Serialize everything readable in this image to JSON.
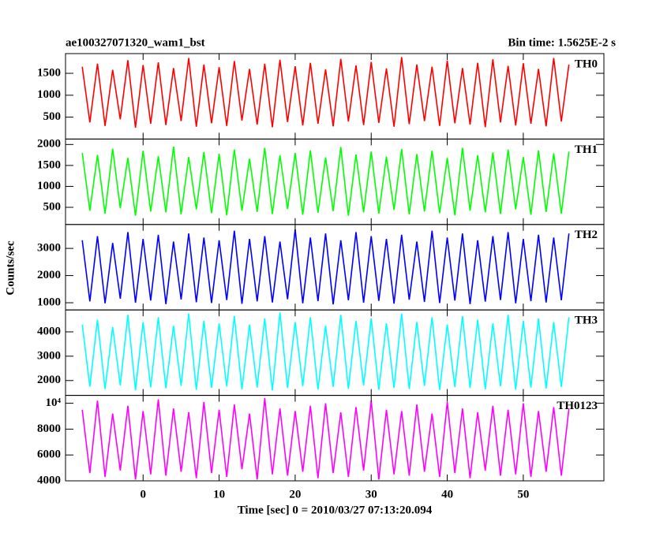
{
  "title": "ae100327071320_wam1_bst",
  "subtitle": "Bin time: 1.5625E-2 s",
  "ylabel": "Counts/sec",
  "xlabel": "Time [sec] 0 = 2010/03/27 07:13:20.094",
  "chart_data": [
    {
      "type": "line",
      "label": "TH0",
      "color": "#ff0000",
      "xlim": [
        -10.2,
        60.6
      ],
      "xticks": [
        0,
        10,
        20,
        30,
        40,
        50
      ],
      "ylim": [
        0,
        1950
      ],
      "yticks": [
        500,
        1000,
        1500
      ],
      "x": [
        -8,
        -7,
        -6,
        -5,
        -4,
        -3,
        -2,
        -1,
        0,
        1,
        2,
        3,
        4,
        5,
        6,
        7,
        8,
        9,
        10,
        11,
        12,
        13,
        14,
        15,
        16,
        17,
        18,
        19,
        20,
        21,
        22,
        23,
        24,
        25,
        26,
        27,
        28,
        29,
        30,
        31,
        32,
        33,
        34,
        35,
        36,
        37,
        38,
        39,
        40,
        41,
        42,
        43,
        44,
        45,
        46,
        47,
        48,
        49,
        50,
        51,
        52,
        53,
        54,
        55,
        56
      ],
      "values": [
        1650,
        380,
        1720,
        300,
        1580,
        450,
        1800,
        260,
        1690,
        350,
        1750,
        320,
        1620,
        410,
        1850,
        280,
        1700,
        360,
        1640,
        300,
        1780,
        420,
        1600,
        330,
        1720,
        270,
        1810,
        390,
        1660,
        310,
        1740,
        350,
        1590,
        290,
        1830,
        400,
        1680,
        320,
        1760,
        370,
        1610,
        280,
        1870,
        340,
        1700,
        410,
        1650,
        300,
        1790,
        360,
        1620,
        330,
        1740,
        270,
        1820,
        380,
        1670,
        310,
        1730,
        350,
        1600,
        290,
        1850,
        400,
        1700
      ]
    },
    {
      "type": "line",
      "label": "TH1",
      "color": "#00ff00",
      "xlim": [
        -10.2,
        60.6
      ],
      "xticks": [
        0,
        10,
        20,
        30,
        40,
        50
      ],
      "ylim": [
        90,
        2130
      ],
      "yticks": [
        500,
        1000,
        1500,
        2000
      ],
      "x": [
        -8,
        -7,
        -6,
        -5,
        -4,
        -3,
        -2,
        -1,
        0,
        1,
        2,
        3,
        4,
        5,
        6,
        7,
        8,
        9,
        10,
        11,
        12,
        13,
        14,
        15,
        16,
        17,
        18,
        19,
        20,
        21,
        22,
        23,
        24,
        25,
        26,
        27,
        28,
        29,
        30,
        31,
        32,
        33,
        34,
        35,
        36,
        37,
        38,
        39,
        40,
        41,
        42,
        43,
        44,
        45,
        46,
        47,
        48,
        49,
        50,
        51,
        52,
        53,
        54,
        55,
        56
      ],
      "values": [
        1800,
        420,
        1750,
        350,
        1900,
        480,
        1680,
        300,
        1850,
        400,
        1720,
        380,
        1950,
        330,
        1700,
        450,
        1820,
        360,
        1780,
        310,
        1880,
        420,
        1660,
        390,
        1920,
        340,
        1740,
        460,
        1800,
        320,
        1860,
        370,
        1690,
        410,
        1940,
        300,
        1760,
        380,
        1830,
        350,
        1710,
        440,
        1890,
        330,
        1770,
        400,
        1850,
        360,
        1680,
        310,
        1920,
        420,
        1740,
        380,
        1810,
        340,
        1880,
        450,
        1700,
        320,
        1860,
        390,
        1790,
        350,
        1830
      ]
    },
    {
      "type": "line",
      "label": "TH2",
      "color": "#0000ff",
      "xlim": [
        -10.2,
        60.6
      ],
      "xticks": [
        0,
        10,
        20,
        30,
        40,
        50
      ],
      "ylim": [
        735,
        3880
      ],
      "yticks": [
        1000,
        2000,
        3000
      ],
      "x": [
        -8,
        -7,
        -6,
        -5,
        -4,
        -3,
        -2,
        -1,
        0,
        1,
        2,
        3,
        4,
        5,
        6,
        7,
        8,
        9,
        10,
        11,
        12,
        13,
        14,
        15,
        16,
        17,
        18,
        19,
        20,
        21,
        22,
        23,
        24,
        25,
        26,
        27,
        28,
        29,
        30,
        31,
        32,
        33,
        34,
        35,
        36,
        37,
        38,
        39,
        40,
        41,
        42,
        43,
        44,
        45,
        46,
        47,
        48,
        49,
        50,
        51,
        52,
        53,
        54,
        55,
        56
      ],
      "values": [
        3300,
        1050,
        3450,
        980,
        3200,
        1150,
        3600,
        1000,
        3350,
        1080,
        3500,
        950,
        3250,
        1120,
        3550,
        1020,
        3400,
        990,
        3300,
        1100,
        3650,
        960,
        3350,
        1050,
        3450,
        1010,
        3250,
        1130,
        3700,
        980,
        3400,
        1060,
        3550,
        940,
        3300,
        1090,
        3600,
        1000,
        3450,
        1070,
        3350,
        970,
        3500,
        1110,
        3250,
        1030,
        3650,
        990,
        3400,
        1080,
        3550,
        950,
        3300,
        1040,
        3450,
        1100,
        3600,
        980,
        3350,
        1060,
        3500,
        1010,
        3400,
        1090,
        3550
      ]
    },
    {
      "type": "line",
      "label": "TH3",
      "color": "#00ffff",
      "xlim": [
        -10.2,
        60.6
      ],
      "xticks": [
        0,
        10,
        20,
        30,
        40,
        50
      ],
      "ylim": [
        1390,
        4900
      ],
      "yticks": [
        2000,
        3000,
        4000
      ],
      "x": [
        -8,
        -7,
        -6,
        -5,
        -4,
        -3,
        -2,
        -1,
        0,
        1,
        2,
        3,
        4,
        5,
        6,
        7,
        8,
        9,
        10,
        11,
        12,
        13,
        14,
        15,
        16,
        17,
        18,
        19,
        20,
        21,
        22,
        23,
        24,
        25,
        26,
        27,
        28,
        29,
        30,
        31,
        32,
        33,
        34,
        35,
        36,
        37,
        38,
        39,
        40,
        41,
        42,
        43,
        44,
        45,
        46,
        47,
        48,
        49,
        50,
        51,
        52,
        53,
        54,
        55,
        56
      ],
      "values": [
        4300,
        1750,
        4500,
        1650,
        4200,
        1800,
        4700,
        1600,
        4400,
        1720,
        4600,
        1680,
        4250,
        1780,
        4750,
        1620,
        4450,
        1700,
        4350,
        1760,
        4650,
        1640,
        4300,
        1710,
        4550,
        1600,
        4800,
        1690,
        4400,
        1770,
        4600,
        1630,
        4250,
        1740,
        4700,
        1660,
        4450,
        1800,
        4550,
        1620,
        4350,
        1700,
        4750,
        1650,
        4400,
        1780,
        4600,
        1610,
        4300,
        1730,
        4650,
        1690,
        4500,
        1640,
        4350,
        1760,
        4700,
        1620,
        4450,
        1710,
        4550,
        1670,
        4400,
        1740,
        4600
      ]
    },
    {
      "type": "line",
      "label": "TH0123",
      "color": "#ff00ff",
      "xlim": [
        -10.2,
        60.6
      ],
      "xticks": [
        0,
        10,
        20,
        30,
        40,
        50
      ],
      "ylim": [
        4000,
        10610
      ],
      "yticks": [
        4000,
        6000,
        8000,
        {
          "value": 10000,
          "label": "10⁴"
        }
      ],
      "x": [
        -8,
        -7,
        -6,
        -5,
        -4,
        -3,
        -2,
        -1,
        0,
        1,
        2,
        3,
        4,
        5,
        6,
        7,
        8,
        9,
        10,
        11,
        12,
        13,
        14,
        15,
        16,
        17,
        18,
        19,
        20,
        21,
        22,
        23,
        24,
        25,
        26,
        27,
        28,
        29,
        30,
        31,
        32,
        33,
        34,
        35,
        36,
        37,
        38,
        39,
        40,
        41,
        42,
        43,
        44,
        45,
        46,
        47,
        48,
        49,
        50,
        51,
        52,
        53,
        54,
        55,
        56
      ],
      "values": [
        9500,
        4600,
        10200,
        4300,
        9200,
        4800,
        9800,
        4100,
        9400,
        4500,
        10300,
        4400,
        9600,
        4700,
        9300,
        4200,
        10100,
        4600,
        9500,
        4300,
        9900,
        4900,
        9200,
        4100,
        10400,
        4500,
        9600,
        4400,
        9400,
        4700,
        9800,
        4200,
        10000,
        4600,
        9300,
        4300,
        9700,
        4800,
        10200,
        4100,
        9500,
        4500,
        9400,
        4400,
        9900,
        4700,
        9200,
        4300,
        10100,
        4600,
        9600,
        4200,
        9300,
        4800,
        9800,
        4400,
        9500,
        4500,
        10000,
        4300,
        9400,
        4700,
        9700,
        4400,
        9600
      ]
    }
  ]
}
